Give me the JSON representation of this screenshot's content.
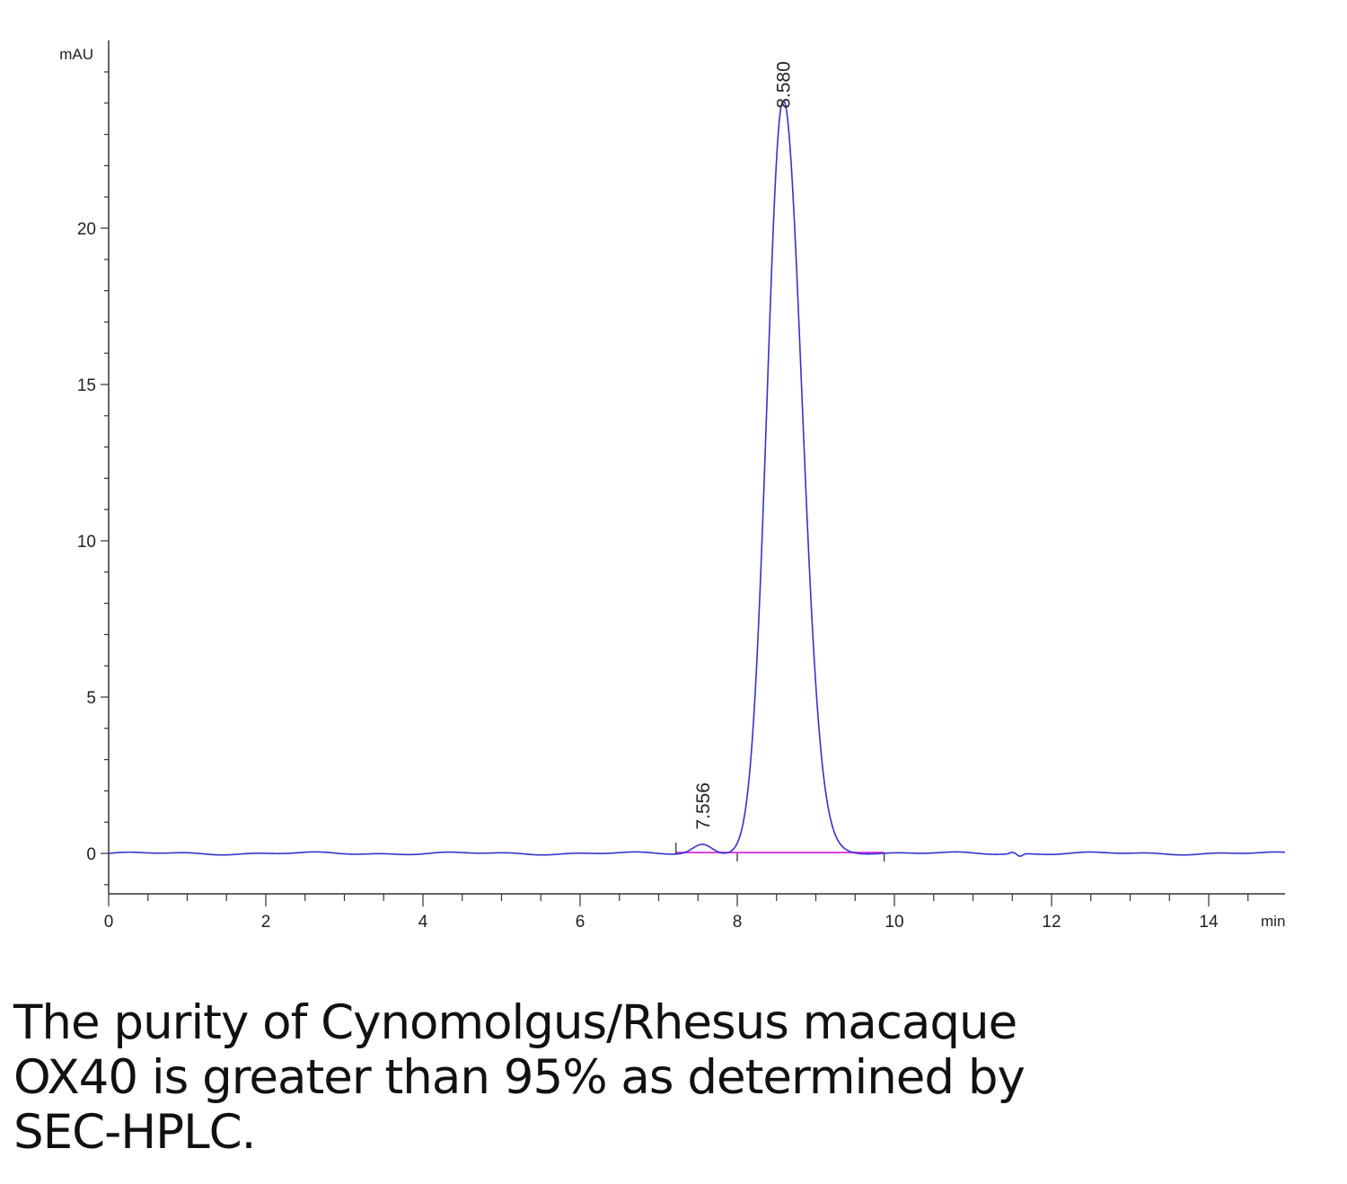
{
  "chart_data": {
    "type": "line",
    "title": "",
    "xlabel": "min",
    "ylabel": "mAU",
    "xlim": [
      0,
      15
    ],
    "ylim": [
      -1.3,
      26
    ],
    "x_ticks": [
      0,
      2,
      4,
      6,
      8,
      10,
      12,
      14
    ],
    "y_ticks": [
      0,
      5,
      10,
      15,
      20
    ],
    "x_tick_labels": [
      "0",
      "2",
      "4",
      "6",
      "8",
      "10",
      "12",
      "14"
    ],
    "y_tick_labels": [
      "0",
      "5",
      "10",
      "15",
      "20"
    ],
    "grid": false,
    "series": [
      {
        "color": "#3333cc",
        "peaks": [
          {
            "retention_time": 7.556,
            "height": 0.3,
            "label": "7.556"
          },
          {
            "retention_time": 8.58,
            "height": 24.0,
            "label": "8.580"
          }
        ]
      }
    ],
    "baseline": {
      "color": "#e040e0",
      "from": 7.22,
      "to": 9.87
    }
  },
  "caption": {
    "lines": [
      "The purity of Cynomolgus/Rhesus macaque",
      "OX40 is greater than 95% as determined by",
      "SEC-HPLC."
    ]
  }
}
